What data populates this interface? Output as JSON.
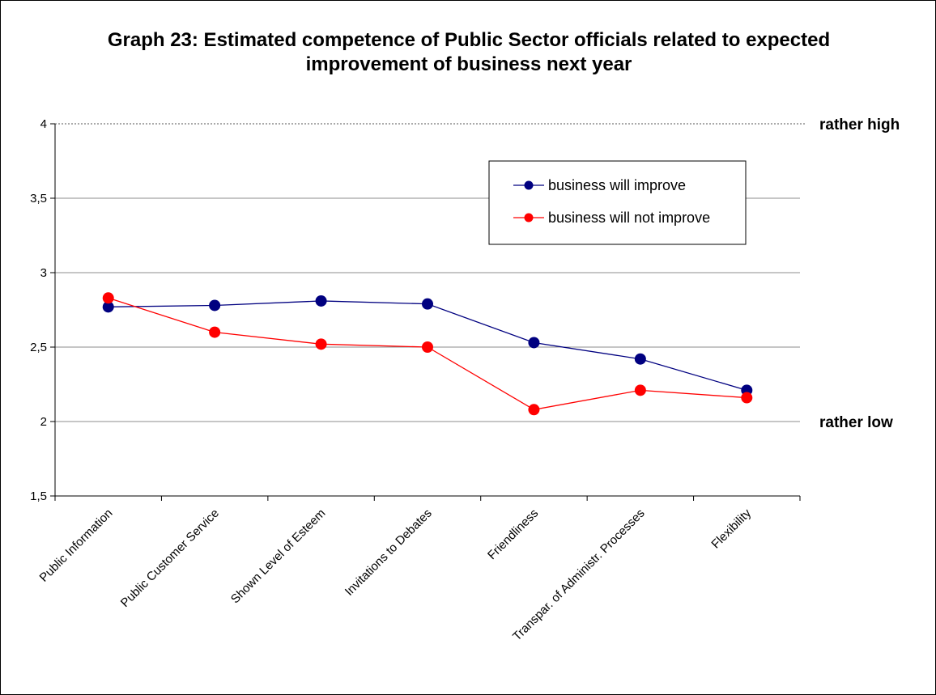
{
  "chart_data": {
    "type": "line",
    "title_line1": "Graph 23: Estimated competence of Public Sector officials related to expected",
    "title_line2": "improvement of business next year",
    "categories": [
      "Public Information",
      "Public Customer Service",
      "Shown Level of Esteem",
      "Invitations to Debates",
      "Friendliness",
      "Transpar. of Administr. Processes",
      "Flexibility"
    ],
    "series": [
      {
        "name": "business will improve",
        "color": "#000080",
        "values": [
          2.77,
          2.78,
          2.81,
          2.79,
          2.53,
          2.42,
          2.21
        ]
      },
      {
        "name": "business will not improve",
        "color": "#ff0000",
        "values": [
          2.83,
          2.6,
          2.52,
          2.5,
          2.08,
          2.21,
          2.16
        ]
      }
    ],
    "ylim": [
      1.5,
      4
    ],
    "yticks": [
      "1,5",
      "2",
      "2,5",
      "3",
      "3,5",
      "4"
    ],
    "ytick_values": [
      1.5,
      2,
      2.5,
      3,
      3.5,
      4
    ],
    "grid": true,
    "legend_position": "top-right",
    "reference_lines": [
      {
        "value": 4,
        "label": "rather high",
        "style": "dotted"
      },
      {
        "value": 2,
        "label": "rather low",
        "style": "none"
      }
    ]
  }
}
